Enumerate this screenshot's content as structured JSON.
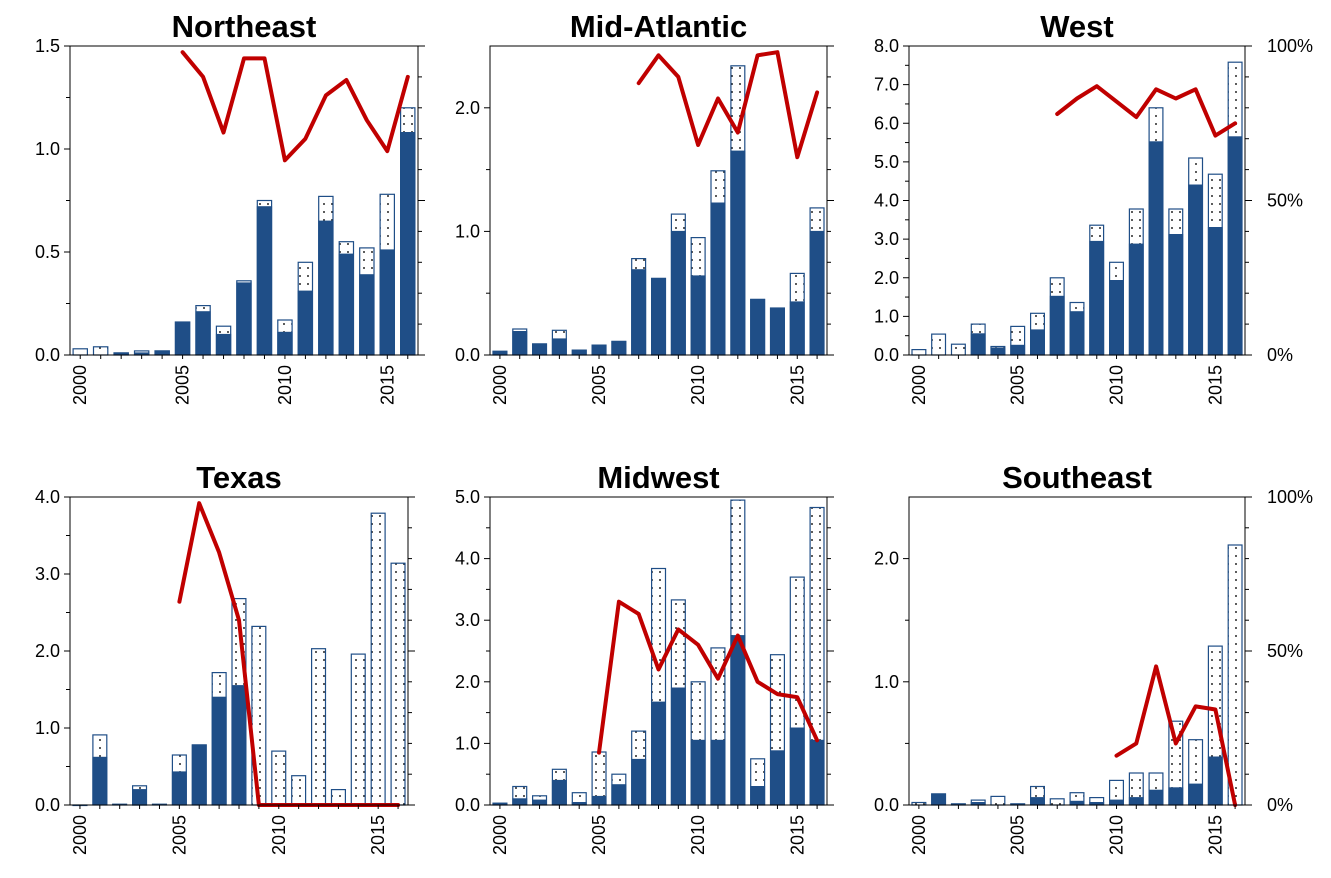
{
  "colors": {
    "solid": "#1f4e87",
    "line": "#c00000",
    "axis": "#000000"
  },
  "chart_data": [
    {
      "type": "bar",
      "title": "Northeast",
      "x": [
        2000,
        2001,
        2002,
        2003,
        2004,
        2005,
        2006,
        2007,
        2008,
        2009,
        2010,
        2011,
        2012,
        2013,
        2014,
        2015,
        2016
      ],
      "x_ticks": [
        "2000",
        "2005",
        "2010",
        "2015"
      ],
      "y_ticks": [
        "0.0",
        "0.5",
        "1.0",
        "1.5"
      ],
      "y_tick_values": [
        0,
        0.5,
        1.0,
        1.5
      ],
      "ylim": [
        0,
        1.5
      ],
      "y2_ticks": [],
      "series": [
        {
          "values": [
            0,
            0,
            0.01,
            0.01,
            0.02,
            0.16,
            0.21,
            0.1,
            0.35,
            0.72,
            0.11,
            0.31,
            0.65,
            0.49,
            0.39,
            0.51,
            1.08
          ]
        },
        {
          "values": [
            0.03,
            0.04,
            0.01,
            0.02,
            0.02,
            0.16,
            0.24,
            0.14,
            0.36,
            0.75,
            0.17,
            0.45,
            0.77,
            0.55,
            0.52,
            0.78,
            1.2
          ]
        },
        {
          "values": [
            null,
            null,
            null,
            null,
            null,
            0.98,
            0.9,
            0.72,
            0.96,
            0.96,
            0.63,
            0.7,
            0.84,
            0.89,
            0.76,
            0.66,
            0.9
          ]
        }
      ]
    },
    {
      "type": "bar",
      "title": "Mid-Atlantic",
      "x": [
        2000,
        2001,
        2002,
        2003,
        2004,
        2005,
        2006,
        2007,
        2008,
        2009,
        2010,
        2011,
        2012,
        2013,
        2014,
        2015,
        2016
      ],
      "x_ticks": [
        "2000",
        "2005",
        "2010",
        "2015"
      ],
      "y_ticks": [
        "0.0",
        "1.0",
        "2.0"
      ],
      "y_tick_values": [
        0,
        1.0,
        2.0
      ],
      "ylim": [
        0,
        2.5
      ],
      "y2_ticks": [],
      "series": [
        {
          "values": [
            0.03,
            0.19,
            0.09,
            0.13,
            0.04,
            0.08,
            0.11,
            0.69,
            0.62,
            1.0,
            0.64,
            1.23,
            1.65,
            0.45,
            0.38,
            0.43,
            1.0
          ]
        },
        {
          "values": [
            0.03,
            0.21,
            0.09,
            0.2,
            0.04,
            0.08,
            0.11,
            0.78,
            0.62,
            1.14,
            0.95,
            1.49,
            2.34,
            0.45,
            0.38,
            0.66,
            1.19
          ]
        },
        {
          "values": [
            null,
            null,
            null,
            null,
            null,
            null,
            null,
            0.88,
            0.97,
            0.9,
            0.68,
            0.83,
            0.72,
            0.97,
            0.98,
            0.64,
            0.85
          ]
        }
      ]
    },
    {
      "type": "bar",
      "title": "West",
      "x": [
        2000,
        2001,
        2002,
        2003,
        2004,
        2005,
        2006,
        2007,
        2008,
        2009,
        2010,
        2011,
        2012,
        2013,
        2014,
        2015,
        2016
      ],
      "x_ticks": [
        "2000",
        "2005",
        "2010",
        "2015"
      ],
      "y_ticks": [
        "0.0",
        "1.0",
        "2.0",
        "3.0",
        "4.0",
        "5.0",
        "6.0",
        "7.0",
        "8.0"
      ],
      "y_tick_values": [
        0,
        1,
        2,
        3,
        4,
        5,
        6,
        7,
        8
      ],
      "ylim": [
        0,
        8
      ],
      "y2_ticks": [
        "0%",
        "50%",
        "100%"
      ],
      "series": [
        {
          "values": [
            0,
            0,
            0,
            0.55,
            0.18,
            0.25,
            0.65,
            1.52,
            1.12,
            2.94,
            1.93,
            2.87,
            5.52,
            3.12,
            4.4,
            3.3,
            5.65
          ]
        },
        {
          "values": [
            0.14,
            0.54,
            0.28,
            0.8,
            0.22,
            0.74,
            1.08,
            2.0,
            1.36,
            3.36,
            2.4,
            3.78,
            6.4,
            3.78,
            5.1,
            4.68,
            7.58
          ]
        },
        {
          "values": [
            null,
            null,
            null,
            null,
            null,
            null,
            null,
            0.78,
            0.83,
            0.87,
            0.82,
            0.77,
            0.86,
            0.83,
            0.86,
            0.71,
            0.75
          ]
        }
      ]
    },
    {
      "type": "bar",
      "title": "Texas",
      "x": [
        2000,
        2001,
        2002,
        2003,
        2004,
        2005,
        2006,
        2007,
        2008,
        2009,
        2010,
        2011,
        2012,
        2013,
        2014,
        2015,
        2016
      ],
      "x_ticks": [
        "2000",
        "2005",
        "2010",
        "2015"
      ],
      "y_ticks": [
        "0.0",
        "1.0",
        "2.0",
        "3.0",
        "4.0"
      ],
      "y_tick_values": [
        0,
        1,
        2,
        3,
        4
      ],
      "ylim": [
        0,
        4
      ],
      "y2_ticks": [],
      "series": [
        {
          "values": [
            0,
            0.62,
            0,
            0.2,
            0,
            0.43,
            0.78,
            1.4,
            1.55,
            0,
            0,
            0,
            0,
            0,
            0,
            0,
            0
          ]
        },
        {
          "values": [
            0,
            0.91,
            0.01,
            0.25,
            0.01,
            0.65,
            0.78,
            1.72,
            2.68,
            2.32,
            0.7,
            0.38,
            2.03,
            0.2,
            1.96,
            3.79,
            3.14
          ]
        },
        {
          "values": [
            null,
            null,
            null,
            null,
            null,
            0.66,
            0.98,
            0.82,
            0.6,
            0,
            0,
            0,
            0,
            0,
            0,
            0,
            0
          ]
        }
      ]
    },
    {
      "type": "bar",
      "title": "Midwest",
      "x": [
        2000,
        2001,
        2002,
        2003,
        2004,
        2005,
        2006,
        2007,
        2008,
        2009,
        2010,
        2011,
        2012,
        2013,
        2014,
        2015,
        2016
      ],
      "x_ticks": [
        "2000",
        "2005",
        "2010",
        "2015"
      ],
      "y_ticks": [
        "0.0",
        "1.0",
        "2.0",
        "3.0",
        "4.0",
        "5.0"
      ],
      "y_tick_values": [
        0,
        1,
        2,
        3,
        4,
        5
      ],
      "ylim": [
        0,
        5
      ],
      "y2_ticks": [],
      "series": [
        {
          "values": [
            0.03,
            0.1,
            0.08,
            0.4,
            0.04,
            0.14,
            0.33,
            0.74,
            1.67,
            1.9,
            1.05,
            1.05,
            2.75,
            0.3,
            0.88,
            1.25,
            1.05
          ]
        },
        {
          "values": [
            0.03,
            0.3,
            0.15,
            0.58,
            0.2,
            0.86,
            0.5,
            1.2,
            3.84,
            3.33,
            2.0,
            2.55,
            4.95,
            0.75,
            2.44,
            3.7,
            4.83
          ]
        },
        {
          "values": [
            null,
            null,
            null,
            null,
            null,
            0.17,
            0.66,
            0.62,
            0.44,
            0.57,
            0.52,
            0.41,
            0.55,
            0.4,
            0.36,
            0.35,
            0.21
          ]
        }
      ]
    },
    {
      "type": "bar",
      "title": "Southeast",
      "x": [
        2000,
        2001,
        2002,
        2003,
        2004,
        2005,
        2006,
        2007,
        2008,
        2009,
        2010,
        2011,
        2012,
        2013,
        2014,
        2015,
        2016
      ],
      "x_ticks": [
        "2000",
        "2005",
        "2010",
        "2015"
      ],
      "y_ticks": [
        "0.0",
        "1.0",
        "2.0"
      ],
      "y_tick_values": [
        0,
        1.0,
        2.0
      ],
      "ylim": [
        0,
        2.5
      ],
      "y2_ticks": [
        "0%",
        "50%",
        "100%"
      ],
      "series": [
        {
          "values": [
            0,
            0.09,
            0,
            0.02,
            0,
            0,
            0.06,
            0,
            0.03,
            0.02,
            0.04,
            0.06,
            0.12,
            0.14,
            0.17,
            0.39,
            0
          ]
        },
        {
          "values": [
            0.02,
            0.09,
            0.01,
            0.04,
            0.07,
            0.01,
            0.15,
            0.05,
            0.1,
            0.06,
            0.2,
            0.26,
            0.26,
            0.68,
            0.53,
            1.29,
            2.11
          ]
        },
        {
          "values": [
            null,
            null,
            null,
            null,
            null,
            null,
            null,
            null,
            null,
            null,
            0.16,
            0.2,
            0.45,
            0.2,
            0.32,
            0.31,
            0
          ]
        }
      ]
    }
  ]
}
